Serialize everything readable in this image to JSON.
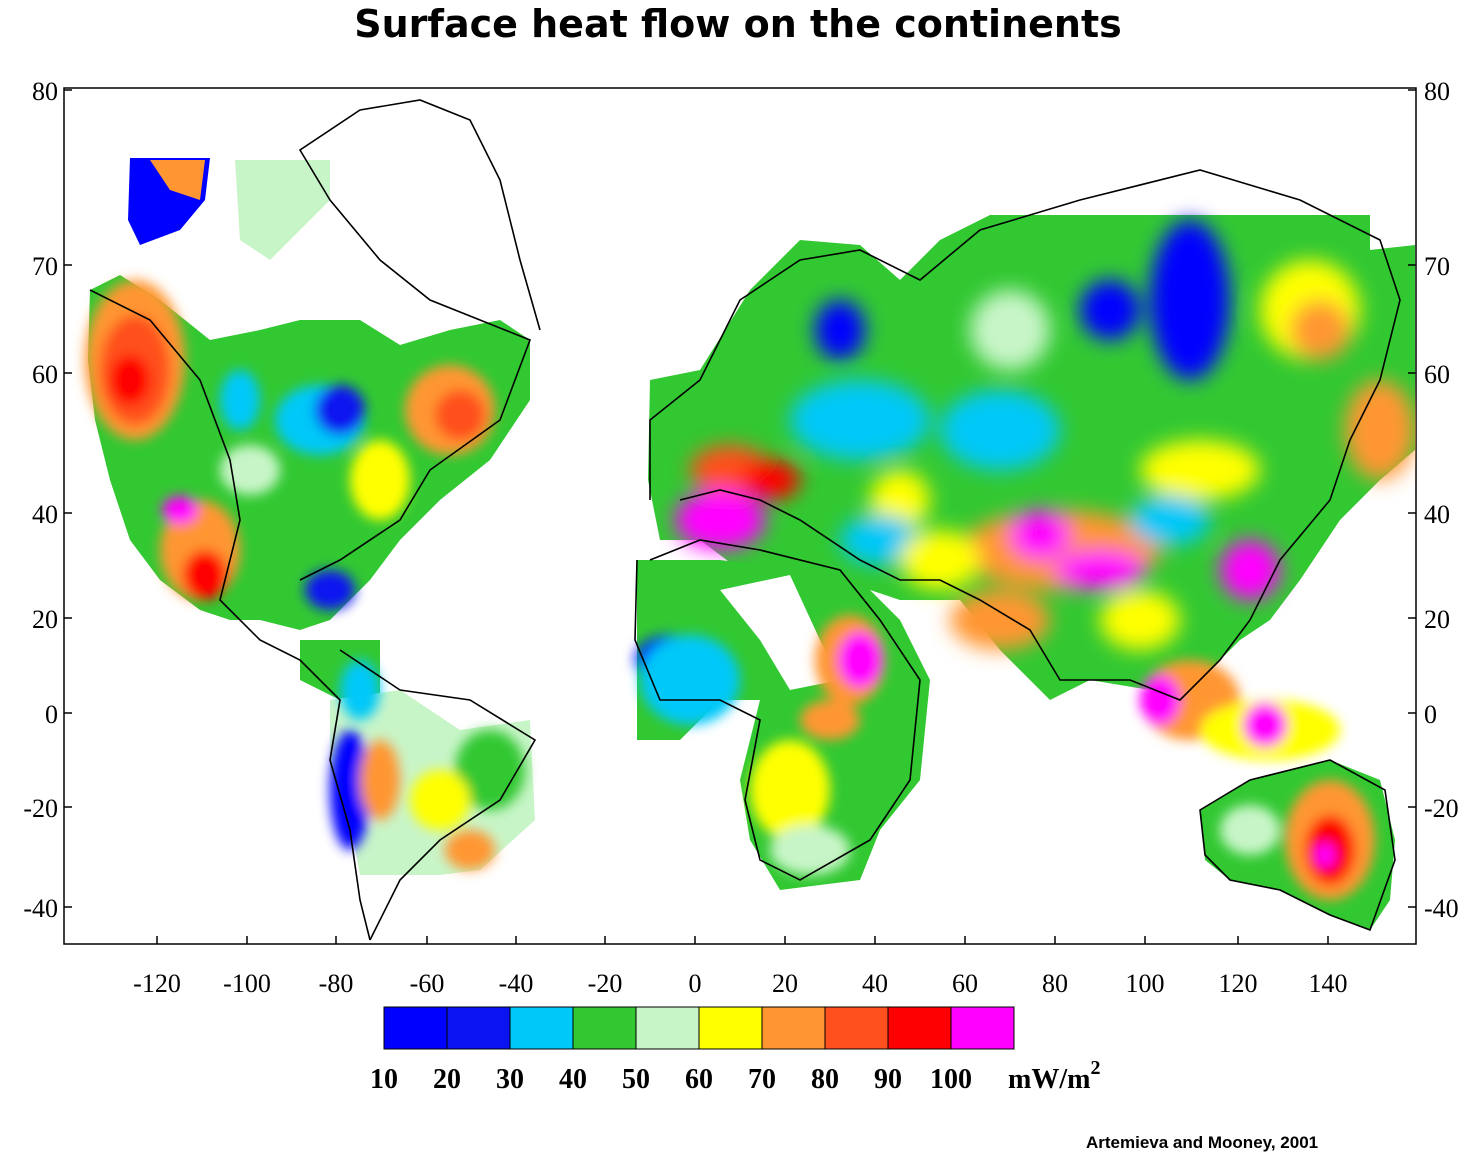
{
  "title": "Surface heat flow on the continents",
  "credit": "Artemieva and Mooney, 2001",
  "map": {
    "x_ticks": [
      "-120",
      "-100",
      "-80",
      "-60",
      "-40",
      "-20",
      "0",
      "20",
      "40",
      "60",
      "80",
      "100",
      "120",
      "140"
    ],
    "y_ticks_left": [
      "80",
      "70",
      "60",
      "40",
      "20",
      "0",
      "-20",
      "-40"
    ],
    "y_ticks_right": [
      "80",
      "70",
      "60",
      "40",
      "20",
      "0",
      "-20",
      "-40"
    ]
  },
  "colorbar": {
    "colors": [
      "#0000ff",
      "#0a14f0",
      "#00c8f8",
      "#32c832",
      "#c8f5c8",
      "#ffff00",
      "#ff9632",
      "#ff501e",
      "#ff0000",
      "#ff00ff"
    ],
    "labels": [
      "10",
      "20",
      "30",
      "40",
      "50",
      "60",
      "70",
      "80",
      "90",
      "100"
    ],
    "unit": "mW/m",
    "unit_sup": "2"
  }
}
